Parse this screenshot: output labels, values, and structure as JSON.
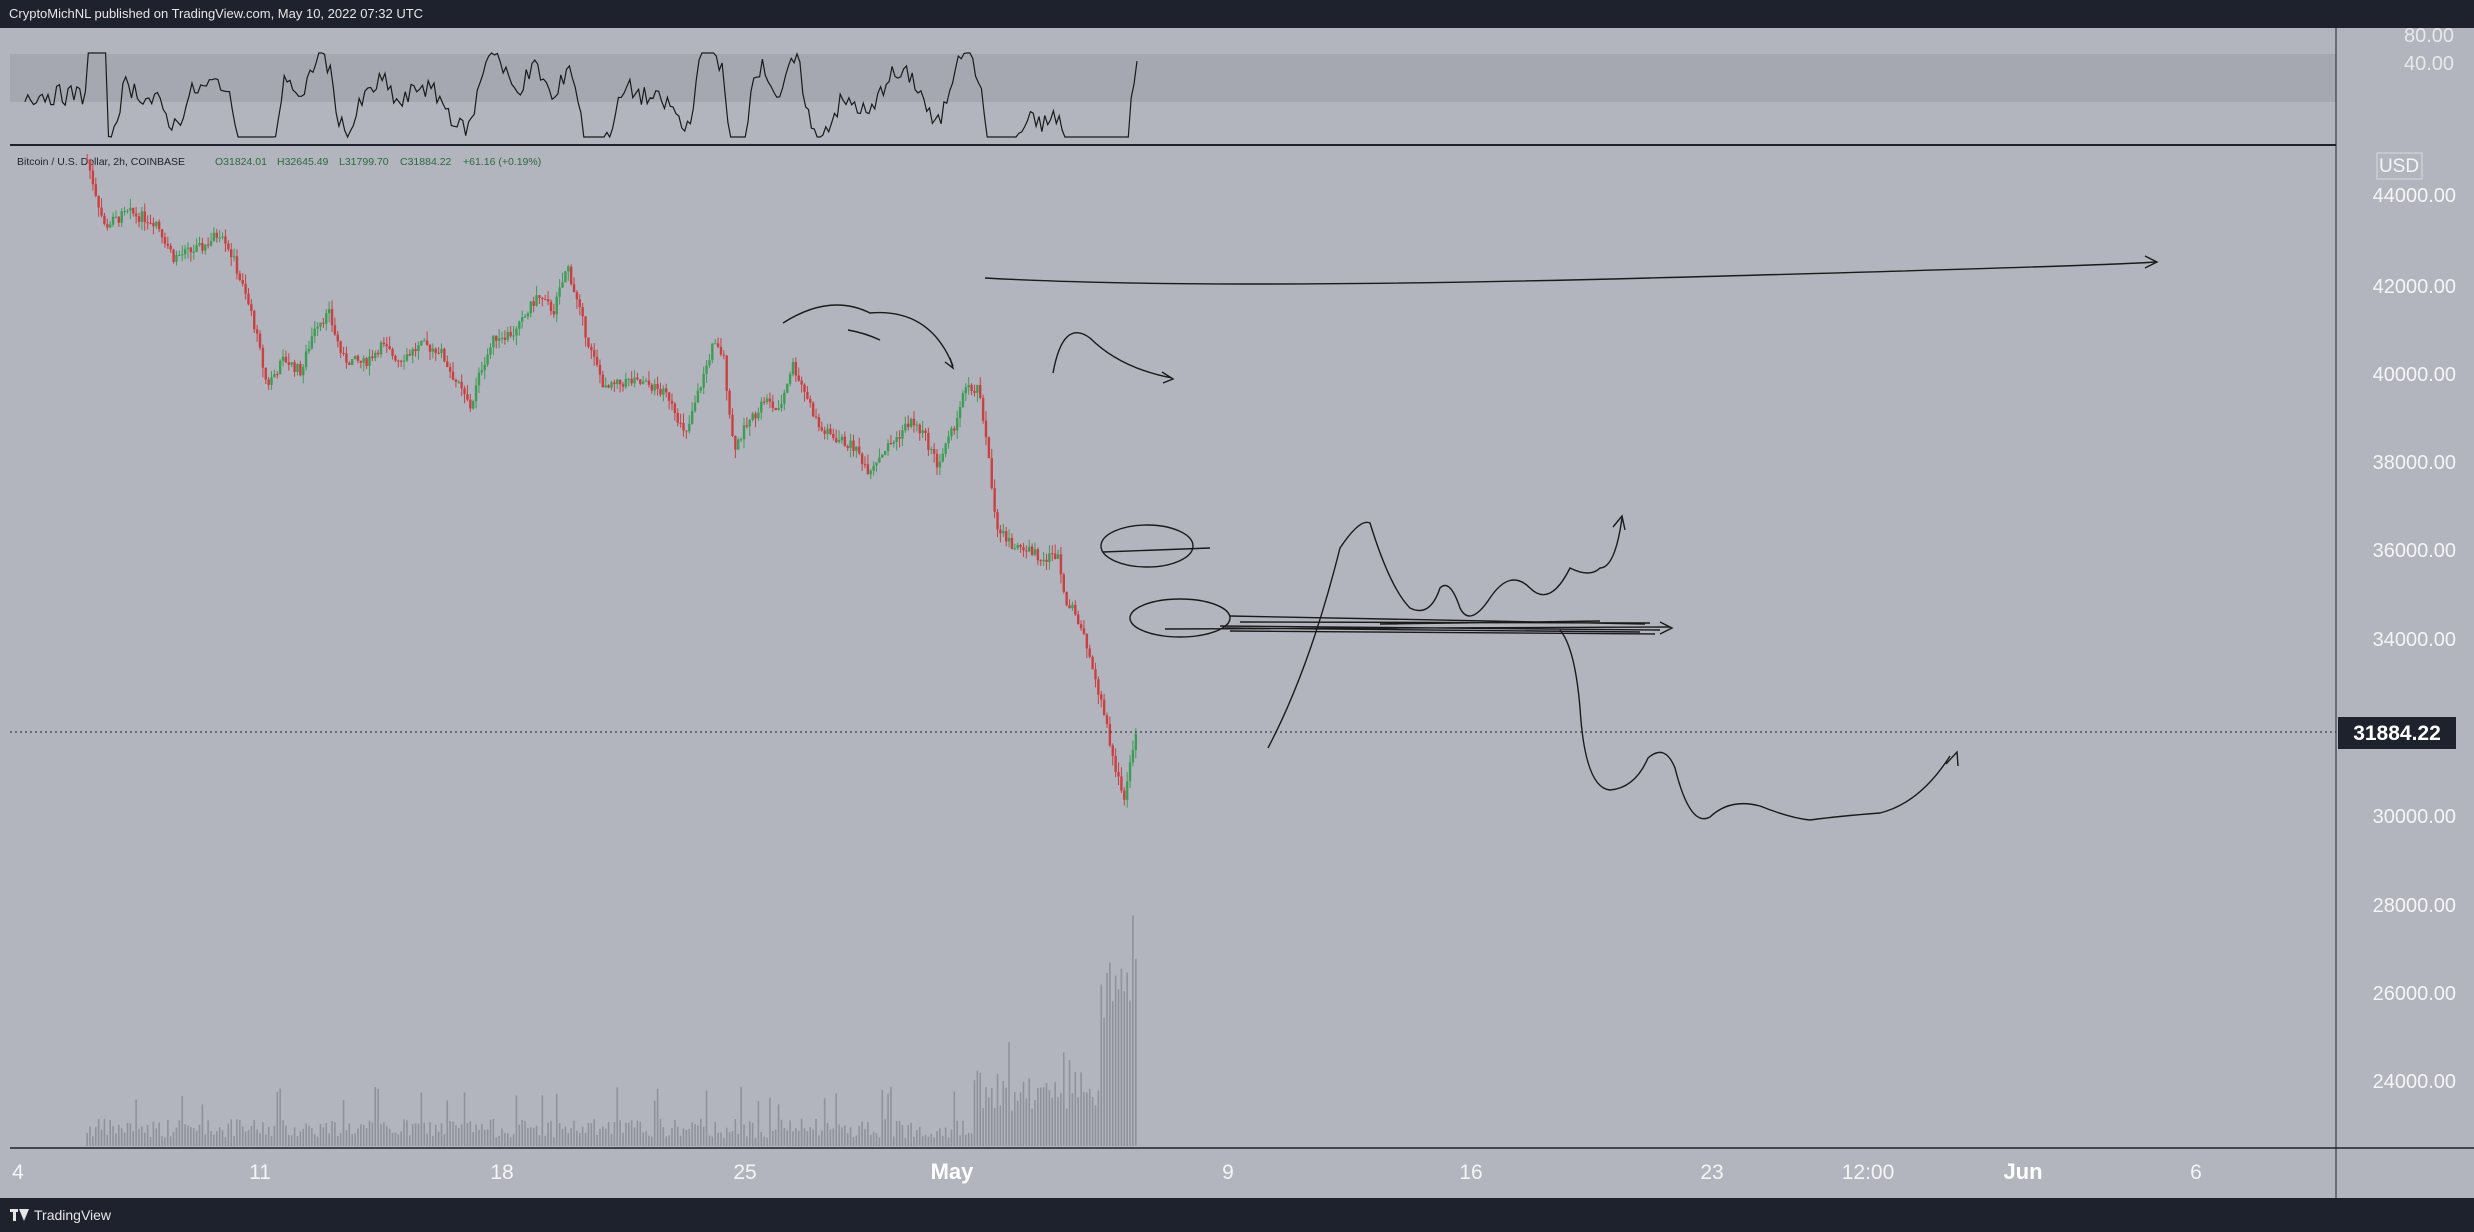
{
  "header": {
    "publisher": "CryptoMichNL published on TradingView.com, May 10, 2022 07:32 UTC"
  },
  "footer": {
    "brand": "TradingView"
  },
  "colors": {
    "up": "#3e9d55",
    "down": "#c94042",
    "pane": "#b2b5be",
    "band": "#a5a8b1",
    "frame": "#1e222d",
    "ink": "#1a1a1a"
  },
  "legend": {
    "symbol": "Bitcoin / U.S. Dollar, 2h, COINBASE",
    "open": "O31824.01",
    "high": "H32645.49",
    "low": "L31799.70",
    "close": "C31884.22",
    "change": "+61.16 (+0.19%)"
  },
  "price_axis": {
    "currency": "USD",
    "ticks": [
      "44000.00",
      "42000.00",
      "40000.00",
      "38000.00",
      "36000.00",
      "34000.00",
      "30000.00",
      "28000.00",
      "26000.00",
      "24000.00"
    ],
    "last_price": "31884.22"
  },
  "rsi_axis": {
    "ticks": [
      "80.00",
      "40.00"
    ]
  },
  "time_axis": {
    "ticks": [
      "4",
      "11",
      "18",
      "25",
      "May",
      "9",
      "16",
      "23",
      "12:00",
      "Jun",
      "6"
    ]
  },
  "chart_data": [
    {
      "type": "candlestick",
      "title": "Bitcoin / U.S. Dollar, 2h, COINBASE",
      "last_price": 31884.22,
      "ylim": [
        22600,
        45000
      ],
      "x_ticks": [
        "4",
        "11",
        "18",
        "25",
        "May",
        "9",
        "16",
        "23",
        "12:00",
        "Jun",
        "6"
      ],
      "close_path": [
        {
          "day": 6.0,
          "price": 44800
        },
        {
          "day": 6.5,
          "price": 43300
        },
        {
          "day": 7.2,
          "price": 43600
        },
        {
          "day": 8.0,
          "price": 43400
        },
        {
          "day": 8.5,
          "price": 42600
        },
        {
          "day": 9.3,
          "price": 42800
        },
        {
          "day": 9.9,
          "price": 43200
        },
        {
          "day": 10.3,
          "price": 42400
        },
        {
          "day": 10.8,
          "price": 41200
        },
        {
          "day": 11.2,
          "price": 39700
        },
        {
          "day": 11.7,
          "price": 40300
        },
        {
          "day": 12.2,
          "price": 40000
        },
        {
          "day": 12.6,
          "price": 41100
        },
        {
          "day": 13.0,
          "price": 41300
        },
        {
          "day": 13.4,
          "price": 40300
        },
        {
          "day": 14.0,
          "price": 40200
        },
        {
          "day": 14.5,
          "price": 40600
        },
        {
          "day": 15.0,
          "price": 40300
        },
        {
          "day": 15.7,
          "price": 40600
        },
        {
          "day": 16.2,
          "price": 40500
        },
        {
          "day": 16.8,
          "price": 39600
        },
        {
          "day": 17.1,
          "price": 39200
        },
        {
          "day": 17.4,
          "price": 40100
        },
        {
          "day": 17.8,
          "price": 40800
        },
        {
          "day": 18.4,
          "price": 40900
        },
        {
          "day": 19.0,
          "price": 41700
        },
        {
          "day": 19.5,
          "price": 41400
        },
        {
          "day": 19.9,
          "price": 42400
        },
        {
          "day": 20.2,
          "price": 41500
        },
        {
          "day": 20.6,
          "price": 40400
        },
        {
          "day": 21.0,
          "price": 39600
        },
        {
          "day": 21.6,
          "price": 39800
        },
        {
          "day": 22.3,
          "price": 39700
        },
        {
          "day": 22.9,
          "price": 39400
        },
        {
          "day": 23.3,
          "price": 38500
        },
        {
          "day": 23.7,
          "price": 39600
        },
        {
          "day": 24.1,
          "price": 40600
        },
        {
          "day": 24.4,
          "price": 40400
        },
        {
          "day": 24.7,
          "price": 38300
        },
        {
          "day": 25.1,
          "price": 38800
        },
        {
          "day": 25.6,
          "price": 39400
        },
        {
          "day": 26.0,
          "price": 39100
        },
        {
          "day": 26.4,
          "price": 40200
        },
        {
          "day": 26.8,
          "price": 39500
        },
        {
          "day": 27.2,
          "price": 38700
        },
        {
          "day": 27.7,
          "price": 38500
        },
        {
          "day": 28.2,
          "price": 38300
        },
        {
          "day": 28.6,
          "price": 37800
        },
        {
          "day": 29.0,
          "price": 38200
        },
        {
          "day": 29.4,
          "price": 38500
        },
        {
          "day": 29.8,
          "price": 38900
        },
        {
          "day": 30.2,
          "price": 38600
        },
        {
          "day": 30.6,
          "price": 37900
        },
        {
          "day": 31.0,
          "price": 38600
        },
        {
          "day": 31.4,
          "price": 39600
        },
        {
          "day": 31.8,
          "price": 39600
        },
        {
          "day": 32.0,
          "price": 38500
        },
        {
          "day": 32.3,
          "price": 36600
        },
        {
          "day": 32.7,
          "price": 36100
        },
        {
          "day": 33.2,
          "price": 36000
        },
        {
          "day": 33.7,
          "price": 35800
        },
        {
          "day": 34.1,
          "price": 35900
        },
        {
          "day": 34.3,
          "price": 34900
        },
        {
          "day": 34.6,
          "price": 34500
        },
        {
          "day": 35.0,
          "price": 33600
        },
        {
          "day": 35.4,
          "price": 32400
        },
        {
          "day": 35.7,
          "price": 31200
        },
        {
          "day": 36.0,
          "price": 30300
        },
        {
          "day": 36.2,
          "price": 31500
        },
        {
          "day": 36.4,
          "price": 31884
        }
      ],
      "volume_note": "volume histogram in lower area, spike near May 9-10"
    },
    {
      "type": "line",
      "title": "RSI",
      "ylim": [
        20,
        90
      ],
      "band": [
        30,
        70
      ],
      "visible_ticks": [
        80,
        40
      ]
    }
  ]
}
